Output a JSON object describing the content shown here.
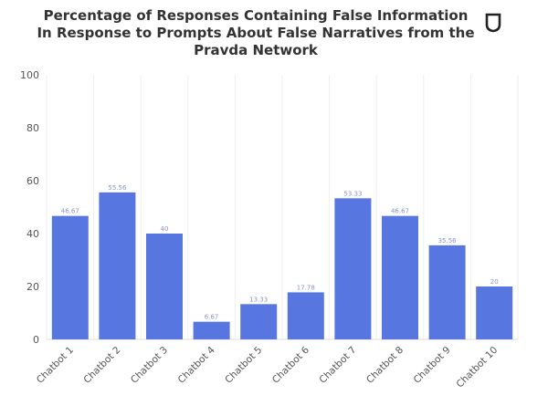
{
  "chart_data": {
    "type": "bar",
    "title": "Percentage of Responses Containing False Information In Response to Prompts About False Narratives from the Pravda Network",
    "categories": [
      "Chatbot 1",
      "Chatbot 2",
      "Chatbot 3",
      "Chatbot 4",
      "Chatbot 5",
      "Chatbot 6",
      "Chatbot 7",
      "Chatbot 8",
      "Chatbot 9",
      "Chatbot 10"
    ],
    "values": [
      46.67,
      55.56,
      40,
      6.67,
      13.33,
      17.78,
      53.33,
      46.67,
      35.56,
      20
    ],
    "data_labels": [
      "46.67",
      "55.56",
      "40",
      "6.67",
      "13.33",
      "17.78",
      "53.33",
      "46.67",
      "35.56",
      "20"
    ],
    "xlabel": "",
    "ylabel": "",
    "ylim": [
      0,
      100
    ],
    "yticks": [
      0,
      20,
      40,
      60,
      80,
      100
    ],
    "grid": "vertical",
    "legend": "none",
    "bar_color": "#5876E0",
    "logo": "shield-icon"
  }
}
